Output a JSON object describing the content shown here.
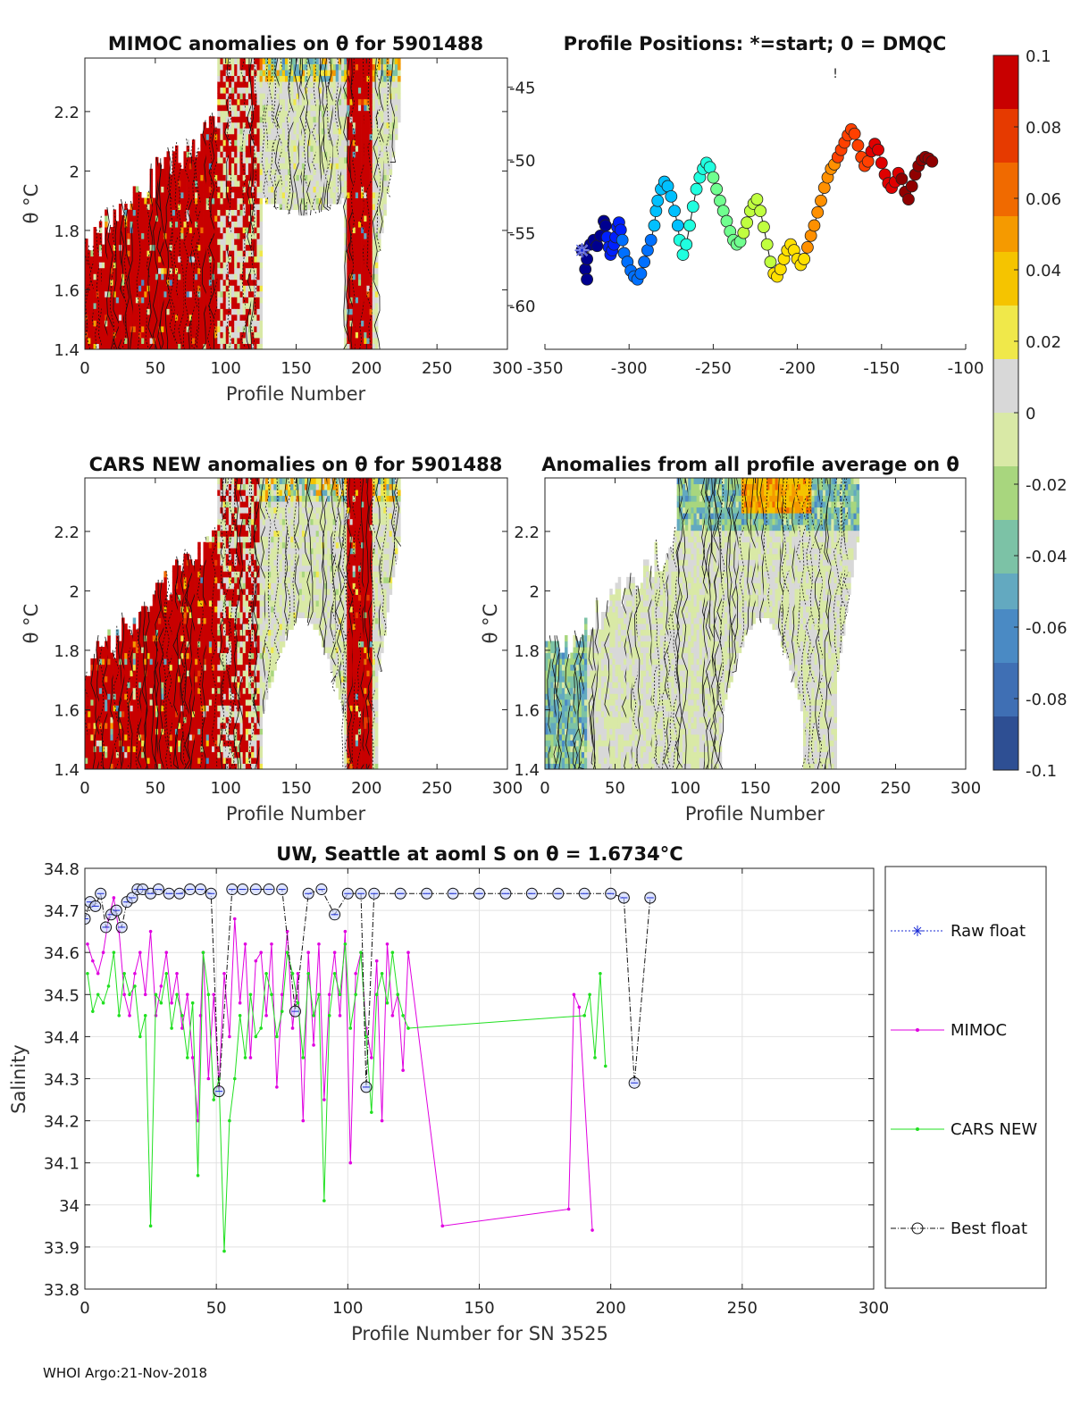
{
  "footer": "WHOI Argo:21-Nov-2018",
  "colors": {
    "colormap": [
      "#2e4f93",
      "#3f6fb4",
      "#4a8ac4",
      "#63a9c0",
      "#7cc2a6",
      "#a8d67e",
      "#d9e9a6",
      "#d8d8d8",
      "#f0e84a",
      "#f5c400",
      "#f59a00",
      "#f06a00",
      "#e63a00",
      "#c80000"
    ],
    "mimoc": "#e000e0",
    "cars": "#20e020",
    "raw": "#1a2bd6",
    "best": "#111111"
  },
  "chart_data": [
    {
      "id": "mimoc_theta",
      "type": "heatmap",
      "title": "MIMOC anomalies on θ  for 5901488",
      "xlabel": "Profile Number",
      "ylabel": "θ °C",
      "xlim": [
        0,
        300
      ],
      "ylim": [
        1.4,
        2.38
      ],
      "xticks": [
        "0",
        "50",
        "100",
        "150",
        "200",
        "250",
        "300"
      ],
      "yticks": [
        "1.4",
        "1.6",
        "1.8",
        "2",
        "2.2"
      ],
      "grid": false,
      "profiles_with_data": [
        1,
        225
      ]
    },
    {
      "id": "positions",
      "type": "scatter",
      "title": "Profile Positions: *=start; 0 = DMQC",
      "xlim": [
        -350,
        -100
      ],
      "ylim": [
        -63,
        -43
      ],
      "xticks": [
        "-350",
        "-300",
        "-250",
        "-200",
        "-150",
        "-100"
      ],
      "yticks": [
        "-45",
        "-50",
        "-55",
        "-60"
      ],
      "start_marker": {
        "lon": -328,
        "lat": -56.2
      },
      "track_lon": [
        -328,
        -326,
        -325,
        -325,
        -323,
        -321,
        -319,
        -317,
        -315,
        -314,
        -313,
        -312,
        -311,
        -310,
        -309,
        -308,
        -307,
        -306,
        -305,
        -304,
        -303,
        -301,
        -299,
        -297,
        -295,
        -293,
        -291,
        -289,
        -287,
        -285,
        -284,
        -283,
        -281,
        -279,
        -277,
        -275,
        -273,
        -271,
        -270,
        -268,
        -266,
        -264,
        -262,
        -260,
        -258,
        -256,
        -254,
        -252,
        -250,
        -248,
        -246,
        -244,
        -242,
        -240,
        -238,
        -236,
        -234,
        -232,
        -230,
        -228,
        -226,
        -224,
        -222,
        -220,
        -218,
        -216,
        -214,
        -212,
        -210,
        -208,
        -206,
        -204,
        -202,
        -200,
        -198,
        -196,
        -194,
        -192,
        -190,
        -188,
        -186,
        -184,
        -182,
        -180,
        -178,
        -176,
        -174,
        -172,
        -170,
        -168,
        -166,
        -164,
        -162,
        -160,
        -158,
        -156,
        -154,
        -152,
        -150,
        -148,
        -146,
        -144,
        -142,
        -140,
        -138,
        -136,
        -134,
        -132,
        -130,
        -128,
        -126,
        -124,
        -122,
        -120
      ],
      "track_lat": [
        -56.2,
        -57.5,
        -58.2,
        -56.8,
        -55.8,
        -55.5,
        -55.9,
        -55.2,
        -54.2,
        -54.5,
        -55.3,
        -56.0,
        -56.5,
        -56.2,
        -55.8,
        -55.3,
        -54.6,
        -54.3,
        -54.8,
        -55.5,
        -56.4,
        -57.0,
        -57.6,
        -58.0,
        -58.2,
        -57.8,
        -57.0,
        -56.2,
        -55.5,
        -54.5,
        -53.5,
        -52.8,
        -52.0,
        -51.5,
        -51.8,
        -52.5,
        -53.5,
        -54.5,
        -55.5,
        -56.5,
        -55.8,
        -54.5,
        -53.2,
        -52.0,
        -51.2,
        -50.6,
        -50.2,
        -50.5,
        -51.2,
        -52.0,
        -52.8,
        -53.5,
        -54.2,
        -54.9,
        -55.5,
        -55.8,
        -55.6,
        -55.0,
        -54.3,
        -53.5,
        -53.0,
        -52.7,
        -53.5,
        -54.6,
        -55.8,
        -57.0,
        -57.8,
        -58.0,
        -57.5,
        -56.8,
        -56.2,
        -55.8,
        -56.2,
        -56.8,
        -57.2,
        -56.8,
        -56.0,
        -55.2,
        -54.5,
        -53.6,
        -52.8,
        -51.9,
        -51.2,
        -50.6,
        -50.3,
        -49.8,
        -49.3,
        -48.8,
        -48.3,
        -47.9,
        -48.2,
        -49.0,
        -49.8,
        -50.4,
        -50.1,
        -49.4,
        -48.9,
        -49.3,
        -50.2,
        -51.0,
        -51.6,
        -51.9,
        -51.5,
        -50.9,
        -51.3,
        -52.2,
        -52.7,
        -51.8,
        -51.0,
        -50.4,
        -50.0,
        -49.8,
        -49.9,
        -50.1
      ],
      "tick_mark_label": "!"
    },
    {
      "id": "colorbar",
      "type": "colorbar",
      "range": [
        -0.1,
        0.1
      ],
      "ticks": [
        "0.1",
        "0.08",
        "0.06",
        "0.04",
        "0.02",
        "0",
        "-0.02",
        "-0.04",
        "-0.06",
        "-0.08",
        "-0.1"
      ]
    },
    {
      "id": "cars_theta",
      "type": "heatmap",
      "title": "CARS NEW anomalies on θ for 5901488",
      "xlabel": "Profile Number",
      "ylabel": "θ °C",
      "xlim": [
        0,
        300
      ],
      "ylim": [
        1.4,
        2.38
      ],
      "xticks": [
        "0",
        "50",
        "100",
        "150",
        "200",
        "250",
        "300"
      ],
      "yticks": [
        "1.4",
        "1.6",
        "1.8",
        "2",
        "2.2"
      ],
      "grid": false
    },
    {
      "id": "avg_theta",
      "type": "heatmap",
      "title": "Anomalies from all profile average on θ",
      "xlabel": "Profile Number",
      "ylabel": "θ °C",
      "xlim": [
        0,
        300
      ],
      "ylim": [
        1.4,
        2.38
      ],
      "xticks": [
        "0",
        "50",
        "100",
        "150",
        "200",
        "250",
        "300"
      ],
      "yticks": [
        "1.4",
        "1.6",
        "1.8",
        "2",
        "2.2"
      ],
      "grid": false
    },
    {
      "id": "salinity",
      "type": "line",
      "title": "UW, Seattle at aoml S on θ = 1.6734°C",
      "xlabel": "Profile Number for SN 3525",
      "ylabel": "Salinity",
      "xlim": [
        0,
        300
      ],
      "ylim": [
        33.8,
        34.8
      ],
      "xticks": [
        "0",
        "50",
        "100",
        "150",
        "200",
        "250",
        "300"
      ],
      "yticks": [
        "33.8",
        "33.9",
        "34",
        "34.1",
        "34.2",
        "34.3",
        "34.4",
        "34.5",
        "34.6",
        "34.7",
        "34.8"
      ],
      "grid": true,
      "legend": [
        "Raw float",
        "MIMOC",
        "CARS NEW",
        "Best float"
      ],
      "legend_position": "right",
      "series": [
        {
          "name": "MIMOC",
          "x": [
            1,
            3,
            5,
            7,
            9,
            11,
            13,
            15,
            17,
            19,
            21,
            23,
            25,
            27,
            29,
            31,
            33,
            35,
            37,
            39,
            41,
            43,
            44,
            45,
            47,
            49,
            51,
            53,
            55,
            57,
            59,
            61,
            63,
            65,
            67,
            69,
            71,
            73,
            75,
            77,
            79,
            81,
            83,
            85,
            87,
            89,
            91,
            93,
            95,
            97,
            99,
            101,
            103,
            105,
            107,
            109,
            111,
            113,
            115,
            117,
            119,
            121,
            123,
            136,
            184,
            186,
            188,
            193
          ],
          "y": [
            34.62,
            34.58,
            34.55,
            34.6,
            34.68,
            34.73,
            34.65,
            34.5,
            34.45,
            34.55,
            34.6,
            34.5,
            34.65,
            34.45,
            34.52,
            34.6,
            34.48,
            34.55,
            34.42,
            34.5,
            34.35,
            34.2,
            34.45,
            34.6,
            34.3,
            34.5,
            34.28,
            34.55,
            34.4,
            34.68,
            34.48,
            34.62,
            34.35,
            34.58,
            34.6,
            34.45,
            34.62,
            34.28,
            34.5,
            34.65,
            34.42,
            34.55,
            34.2,
            34.6,
            34.38,
            34.62,
            34.25,
            34.5,
            34.6,
            34.45,
            34.65,
            34.1,
            34.55,
            34.6,
            34.42,
            34.35,
            34.58,
            34.2,
            34.62,
            34.45,
            34.5,
            34.32,
            34.6,
            33.95,
            33.99,
            34.5,
            34.47,
            33.94
          ]
        },
        {
          "name": "CARS NEW",
          "x": [
            1,
            3,
            5,
            7,
            9,
            11,
            13,
            15,
            17,
            19,
            21,
            23,
            25,
            27,
            29,
            31,
            33,
            35,
            37,
            39,
            41,
            43,
            45,
            47,
            49,
            51,
            53,
            55,
            57,
            59,
            61,
            63,
            65,
            67,
            69,
            71,
            73,
            75,
            77,
            79,
            81,
            83,
            85,
            87,
            89,
            91,
            93,
            95,
            97,
            99,
            101,
            103,
            105,
            107,
            109,
            111,
            113,
            115,
            117,
            119,
            121,
            123,
            190,
            192,
            194,
            196,
            198
          ],
          "y": [
            34.55,
            34.46,
            34.5,
            34.48,
            34.52,
            34.6,
            34.45,
            34.55,
            34.5,
            34.52,
            34.4,
            34.45,
            33.95,
            34.5,
            34.48,
            34.55,
            34.42,
            34.5,
            34.45,
            34.35,
            34.48,
            34.07,
            34.6,
            34.5,
            34.25,
            34.3,
            33.89,
            34.2,
            34.3,
            34.45,
            34.35,
            34.5,
            34.4,
            34.42,
            34.55,
            34.5,
            34.4,
            34.46,
            34.6,
            34.55,
            34.48,
            34.35,
            34.55,
            34.45,
            34.5,
            34.01,
            34.45,
            34.55,
            34.5,
            34.62,
            34.42,
            34.5,
            34.6,
            34.4,
            34.22,
            34.5,
            34.55,
            34.48,
            34.6,
            34.5,
            34.45,
            34.42,
            34.45,
            34.5,
            34.35,
            34.55,
            34.33
          ]
        },
        {
          "name": "Best float",
          "x": [
            0,
            2,
            4,
            6,
            8,
            10,
            12,
            14,
            16,
            18,
            20,
            22,
            25,
            28,
            32,
            36,
            40,
            44,
            48,
            51,
            56,
            60,
            65,
            70,
            75,
            80,
            85,
            90,
            95,
            100,
            105,
            107,
            110,
            120,
            130,
            140,
            150,
            160,
            170,
            180,
            190,
            200,
            205,
            209,
            215
          ],
          "y": [
            34.68,
            34.72,
            34.71,
            34.74,
            34.66,
            34.69,
            34.7,
            34.66,
            34.72,
            34.73,
            34.75,
            34.75,
            34.74,
            34.75,
            34.74,
            34.74,
            34.75,
            34.75,
            34.74,
            34.27,
            34.75,
            34.75,
            34.75,
            34.75,
            34.75,
            34.46,
            34.74,
            34.75,
            34.69,
            34.74,
            34.74,
            34.28,
            34.74,
            34.74,
            34.74,
            34.74,
            34.74,
            34.74,
            34.74,
            34.74,
            34.74,
            34.74,
            34.73,
            34.29,
            34.73
          ]
        }
      ]
    }
  ]
}
